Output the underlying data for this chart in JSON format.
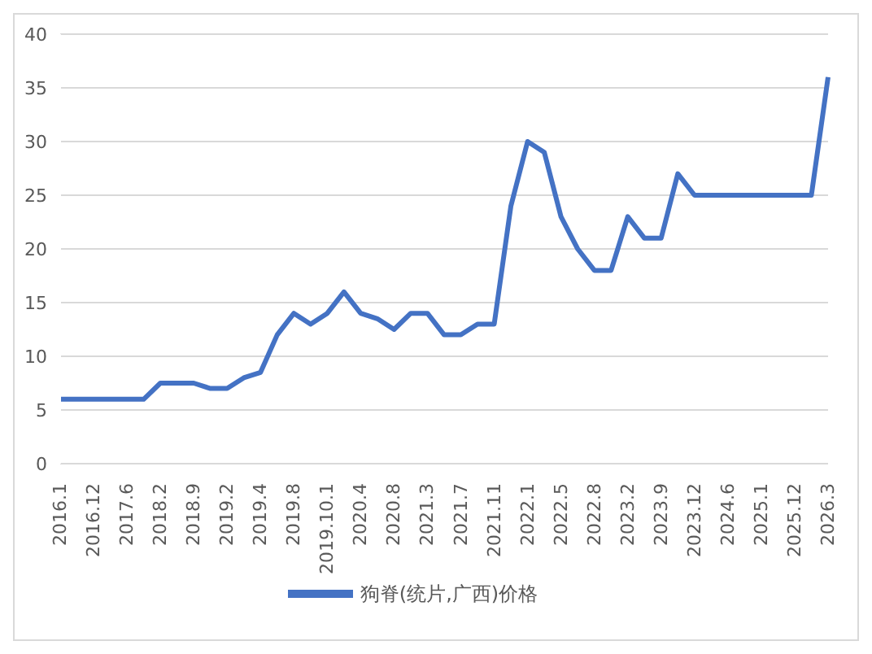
{
  "chart_data": {
    "type": "line",
    "categories": [
      "2016.1",
      null,
      "2016.12",
      null,
      "2017.6",
      null,
      "2018.2",
      null,
      "2018.9",
      null,
      "2019.2",
      null,
      "2019.4",
      null,
      "2019.8",
      null,
      "2019.10.1",
      null,
      "2020.4",
      null,
      "2020.8",
      null,
      "2021.3",
      null,
      "2021.7",
      null,
      "2021.11",
      null,
      "2022.1",
      null,
      "2022.5",
      null,
      "2022.8",
      null,
      "2023.2",
      null,
      "2023.9",
      null,
      "2023.12",
      null,
      "2024.6",
      null,
      "2025.1",
      null,
      "2025.12",
      null,
      "2026.3"
    ],
    "series": [
      {
        "name": "狗脊(统片,广西)价格",
        "color": "#4472c4",
        "values": [
          6,
          6,
          6,
          6,
          6,
          6,
          7.5,
          7.5,
          7.5,
          7,
          7,
          8,
          8.5,
          12,
          14,
          13,
          14,
          16,
          14,
          13.5,
          12.5,
          14,
          14,
          12,
          12,
          13,
          13,
          24,
          30,
          29,
          23,
          20,
          18,
          18,
          23,
          21,
          21,
          27,
          25,
          25,
          25,
          25,
          25,
          25,
          25,
          25,
          36
        ]
      }
    ],
    "ylim": [
      0,
      40
    ],
    "yticks": [
      0,
      5,
      10,
      15,
      20,
      25,
      30,
      35,
      40
    ],
    "grid": "y",
    "legend": "bottom",
    "marker": "none",
    "line_style": "solid"
  }
}
